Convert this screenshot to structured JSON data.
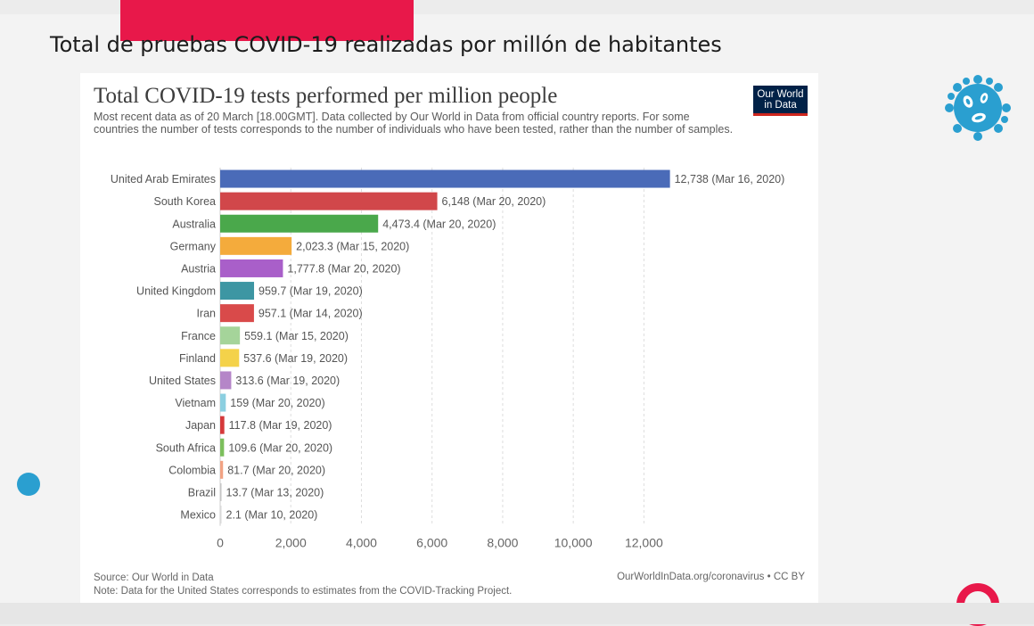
{
  "slide": {
    "title": "Total de pruebas COVID-19 realizadas por millón de habitantes"
  },
  "logo": {
    "line1": "Our World",
    "line2": "in Data"
  },
  "footer": {
    "source": "Source: Our World in Data",
    "note": "Note: Data for the United States corresponds to estimates from the COVID-Tracking Project.",
    "credit": "OurWorldInData.org/coronavirus • CC BY"
  },
  "colors": {
    "accent_red": "#e8184a",
    "dot_blue": "#2a9fd0",
    "owid_navy": "#002147"
  },
  "icons": [
    "virus-icon",
    "decorative-dot",
    "decorative-ring"
  ],
  "chart_data": {
    "type": "bar",
    "orientation": "horizontal",
    "title": "Total COVID-19 tests performed per million people",
    "subtitle": "Most recent data as of 20 March [18.00GMT]. Data collected by Our World in Data from official country reports. For some countries the number of tests corresponds to the number of individuals who have been tested, rather than the number of samples.",
    "categories": [
      "United Arab Emirates",
      "South Korea",
      "Australia",
      "Germany",
      "Austria",
      "United Kingdom",
      "Iran",
      "France",
      "Finland",
      "United States",
      "Vietnam",
      "Japan",
      "South Africa",
      "Colombia",
      "Brazil",
      "Mexico"
    ],
    "values": [
      12738,
      6148,
      4473.4,
      2023.3,
      1777.8,
      959.7,
      957.1,
      559.1,
      537.6,
      313.6,
      159,
      117.8,
      109.6,
      81.7,
      13.7,
      2.1
    ],
    "labels": [
      "12,738 (Mar 16, 2020)",
      "6,148 (Mar 20, 2020)",
      "4,473.4 (Mar 20, 2020)",
      "2,023.3 (Mar 15, 2020)",
      "1,777.8 (Mar 20, 2020)",
      "959.7 (Mar 19, 2020)",
      "957.1 (Mar 14, 2020)",
      "559.1 (Mar 15, 2020)",
      "537.6 (Mar 19, 2020)",
      "313.6 (Mar 19, 2020)",
      "159 (Mar 20, 2020)",
      "117.8 (Mar 19, 2020)",
      "109.6 (Mar 20, 2020)",
      "81.7 (Mar 20, 2020)",
      "13.7 (Mar 13, 2020)",
      "2.1 (Mar 10, 2020)"
    ],
    "bar_colors": [
      "#4a6bb8",
      "#d1474a",
      "#4aa84b",
      "#f4ab3c",
      "#a95fc9",
      "#3d96a3",
      "#d94a4a",
      "#a5d49a",
      "#f4d24a",
      "#b586c8",
      "#8ccfe0",
      "#d5393a",
      "#7cbf5c",
      "#f2a283",
      "#c6c6c6",
      "#d9d9d9"
    ],
    "xlim": [
      0,
      13000
    ],
    "xticks": [
      0,
      2000,
      4000,
      6000,
      8000,
      10000,
      12000
    ],
    "xtick_labels": [
      "0",
      "2,000",
      "4,000",
      "6,000",
      "8,000",
      "10,000",
      "12,000"
    ],
    "grid": "vertical dashed"
  }
}
